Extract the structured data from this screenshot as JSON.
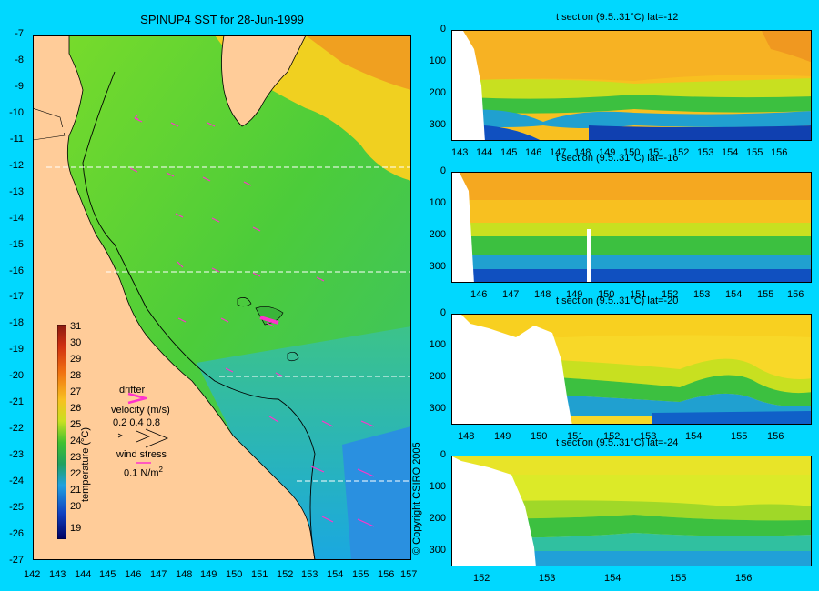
{
  "map": {
    "title": "SPINUP4 SST for 28-Jun-1999",
    "lat_labels": [
      "-7",
      "-8",
      "-9",
      "-10",
      "-11",
      "-12",
      "-13",
      "-14",
      "-15",
      "-16",
      "-17",
      "-18",
      "-19",
      "-20",
      "-21",
      "-22",
      "-23",
      "-24",
      "-25",
      "-26",
      "-27"
    ],
    "lon_labels": [
      "142",
      "143",
      "144",
      "145",
      "146",
      "147",
      "148",
      "149",
      "150",
      "151",
      "152",
      "153",
      "154",
      "155",
      "156",
      "157"
    ],
    "section_lats": [
      "-12",
      "-16",
      "-20",
      "-24"
    ],
    "colorbar": {
      "ticks": [
        "31",
        "30",
        "29",
        "28",
        "27",
        "26",
        "25",
        "24",
        "23",
        "22",
        "21",
        "20",
        "19"
      ],
      "label": "temperature (°C)"
    },
    "legend": {
      "drifter": "drifter",
      "velocity_title": "velocity (m/s)",
      "velocity_values": "0.2 0.4 0.8",
      "wind_title": "wind stress",
      "wind_value": "0.1 N/m",
      "wind_exp": "2"
    },
    "copyright": "© Copyright CSIRO 2005",
    "colors": {
      "background": "#00d8ff",
      "land": "#ffcc99",
      "arrow": "#ff33cc"
    }
  },
  "sections": [
    {
      "title": "t section (9.5..31°C) lat=-12",
      "lon_ticks": [
        "143",
        "144",
        "145",
        "146",
        "147",
        "148",
        "149",
        "150",
        "151",
        "152",
        "153",
        "154",
        "155",
        "156"
      ],
      "depth_ticks": [
        "0",
        "100",
        "200",
        "300"
      ]
    },
    {
      "title": "t section (9.5..31°C) lat=-16",
      "lon_ticks": [
        "146",
        "147",
        "148",
        "149",
        "150",
        "151",
        "152",
        "153",
        "154",
        "155",
        "156"
      ],
      "depth_ticks": [
        "0",
        "100",
        "200",
        "300"
      ]
    },
    {
      "title": "t section (9.5..31°C) lat=-20",
      "lon_ticks": [
        "148",
        "149",
        "150",
        "151",
        "152",
        "153",
        "154",
        "155",
        "156"
      ],
      "depth_ticks": [
        "0",
        "100",
        "200",
        "300"
      ]
    },
    {
      "title": "t section (9.5..31°C) lat=-24",
      "lon_ticks": [
        "152",
        "153",
        "154",
        "155",
        "156"
      ],
      "depth_ticks": [
        "0",
        "100",
        "200",
        "300"
      ]
    }
  ]
}
